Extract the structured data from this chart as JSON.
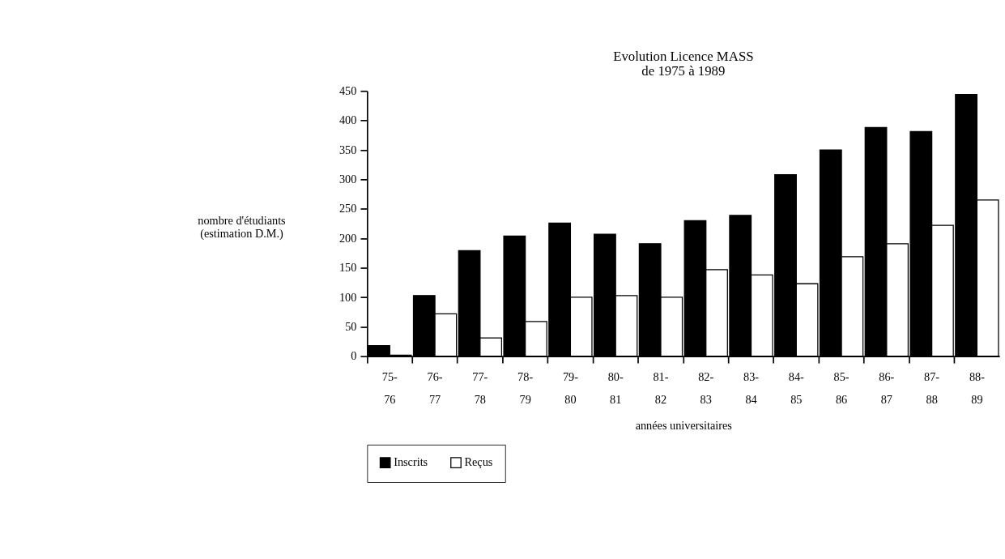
{
  "chart_data": {
    "type": "bar",
    "title": "Evolution Licence MASS\nde 1975 à 1989",
    "xlabel": "années universitaires",
    "ylabel": "nombre d'étudiants\n(estimation D.M.)",
    "categories": [
      "75-76",
      "76-77",
      "77-78",
      "78-79",
      "79-80",
      "80-81",
      "81-82",
      "82-83",
      "83-84",
      "84-85",
      "85-86",
      "86-87",
      "87-88",
      "88-89"
    ],
    "series": [
      {
        "name": "Inscrits",
        "color": "#000000",
        "values": [
          18,
          103,
          179,
          204,
          226,
          207,
          191,
          230,
          239,
          308,
          350,
          388,
          381,
          444
        ]
      },
      {
        "name": "Reçus",
        "color": "#ffffff",
        "values": [
          2,
          72,
          31,
          59,
          100,
          103,
          100,
          147,
          138,
          123,
          169,
          191,
          222,
          265
        ]
      }
    ],
    "ylim": [
      0,
      450
    ],
    "yticks": [
      0,
      50,
      100,
      150,
      200,
      250,
      300,
      350,
      400,
      450
    ],
    "grid": false,
    "legend": "bottom"
  }
}
